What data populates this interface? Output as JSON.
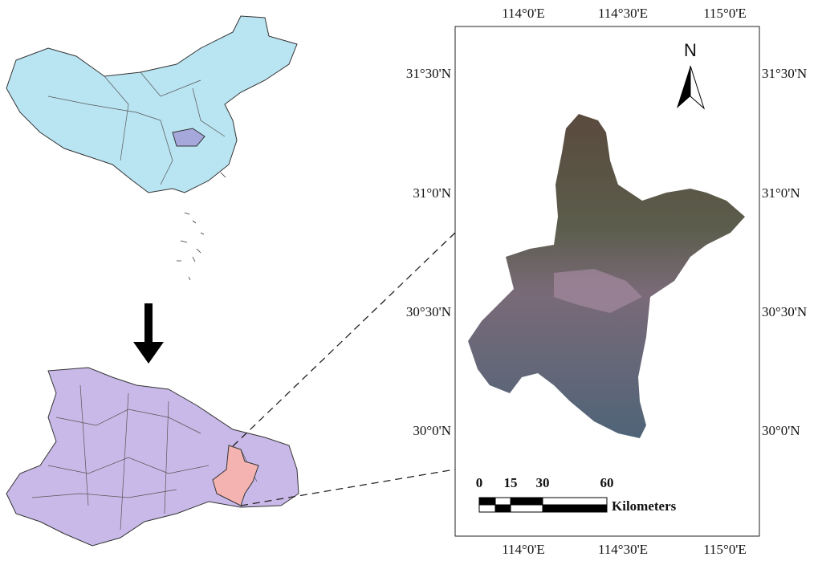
{
  "map": {
    "top_labels": [
      "114°0'E",
      "114°30'E",
      "115°0'E"
    ],
    "bottom_labels": [
      "114°0'E",
      "114°30'E",
      "115°0'E"
    ],
    "left_labels": [
      "31°30'N",
      "31°0'N",
      "30°30'N",
      "30°0'N"
    ],
    "right_labels": [
      "31°30'N",
      "31°0'N",
      "30°30'N",
      "30°0'N"
    ],
    "north": "N",
    "scale": {
      "ticks": [
        "0",
        "15",
        "30",
        "60"
      ],
      "unit": "Kilometers"
    }
  }
}
